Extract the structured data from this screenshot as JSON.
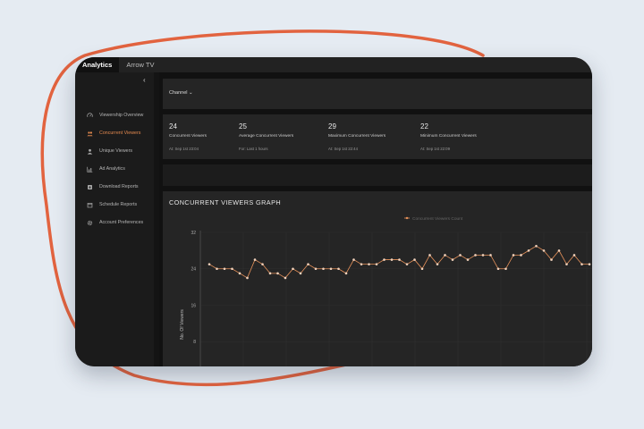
{
  "app": {
    "tabs": [
      "Analytics",
      "Arrow TV"
    ],
    "active_tab": 0
  },
  "sidebar": {
    "collapse_icon": "chevron-left-icon",
    "items": [
      {
        "label": "Viewership Overview",
        "icon": "gauge-icon",
        "active": false
      },
      {
        "label": "Concurrent Viewers",
        "icon": "people-icon",
        "active": true
      },
      {
        "label": "Unique Viewers",
        "icon": "user-icon",
        "active": false
      },
      {
        "label": "Ad Analytics",
        "icon": "bar-chart-icon",
        "active": false
      },
      {
        "label": "Download Reports",
        "icon": "download-icon",
        "active": false
      },
      {
        "label": "Schedule Reports",
        "icon": "calendar-icon",
        "active": false
      },
      {
        "label": "Account Preferences",
        "icon": "gear-icon",
        "active": false
      }
    ]
  },
  "filter": {
    "channel_label": "Channel ⌄"
  },
  "stats": [
    {
      "value": "24",
      "label": "Concurrent Viewers",
      "sub": "At: Sep 1st 23:04"
    },
    {
      "value": "25",
      "label": "Average Concurrent Viewers",
      "sub": "For: Last 1 hours"
    },
    {
      "value": "29",
      "label": "Maximum Concurrent Viewers",
      "sub": "At: Sep 1st 22:44"
    },
    {
      "value": "22",
      "label": "Minimum Concurrent Viewers",
      "sub": "At: Sep 1st 22:09"
    }
  ],
  "graph": {
    "title": "CONCURRENT VIEWERS GRAPH"
  },
  "chart_data": {
    "type": "line",
    "series": [
      {
        "name": "Concurrent Viewers Count",
        "values": [
          25,
          24,
          24,
          24,
          23,
          22,
          26,
          25,
          23,
          23,
          22,
          24,
          23,
          25,
          24,
          24,
          24,
          24,
          23,
          26,
          25,
          25,
          25,
          26,
          26,
          26,
          25,
          26,
          24,
          27,
          25,
          27,
          26,
          27,
          26,
          27,
          27,
          27,
          24,
          24,
          27,
          27,
          28,
          29,
          28,
          26,
          28,
          25,
          27,
          25,
          25
        ]
      }
    ],
    "ylabel": "No. Of Viewers",
    "yticks": [
      8,
      16,
      24,
      32
    ],
    "ylim": [
      0,
      32
    ],
    "color": "#e6915a",
    "grid": true,
    "legend": "top"
  }
}
